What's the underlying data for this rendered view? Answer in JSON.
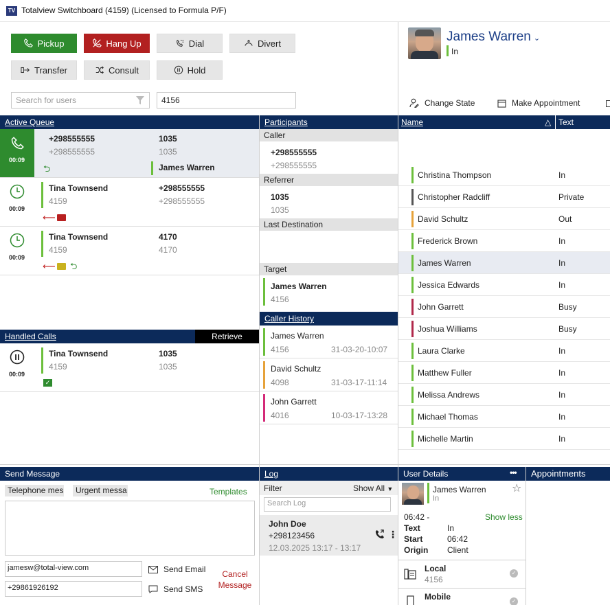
{
  "app": {
    "title": "Totalview Switchboard (4159) (Licensed to Formula P/F)",
    "logo": "TV"
  },
  "toolbar": {
    "pickup": "Pickup",
    "hangup": "Hang Up",
    "dial": "Dial",
    "divert": "Divert",
    "transfer": "Transfer",
    "consult": "Consult",
    "hold": "Hold"
  },
  "search": {
    "placeholder": "Search for users",
    "number": "4156"
  },
  "profile": {
    "name": "James Warren",
    "state": "In",
    "change_state": "Change State",
    "make_appointment": "Make Appointment"
  },
  "active_queue": {
    "title": "Active Queue",
    "calls": [
      {
        "time": "00:09",
        "from_name": "+298555555",
        "from_num": "+298555555",
        "to_name": "1035",
        "to_num": "1035",
        "agent": "James Warren"
      },
      {
        "time": "00:09",
        "from_name": "Tina Townsend",
        "from_num": "4159",
        "to_name": "+298555555",
        "to_num": "+298555555"
      },
      {
        "time": "00:09",
        "from_name": "Tina Townsend",
        "from_num": "4159",
        "to_name": "4170",
        "to_num": "4170"
      }
    ]
  },
  "handled": {
    "title": "Handled Calls",
    "retrieve": "Retrieve",
    "call": {
      "time": "00:09",
      "from_name": "Tina Townsend",
      "from_num": "4159",
      "to_name": "1035",
      "to_num": "1035"
    }
  },
  "participants": {
    "title": "Participants",
    "caller_label": "Caller",
    "caller_name": "+298555555",
    "caller_num": "+298555555",
    "referrer_label": "Referrer",
    "referrer_name": "1035",
    "referrer_num": "1035",
    "last_dest_label": "Last Destination",
    "target_label": "Target",
    "target_name": "James Warren",
    "target_num": "4156"
  },
  "caller_history": {
    "title": "Caller History",
    "items": [
      {
        "name": "James Warren",
        "num": "4156",
        "date": "31-03-20-10:07",
        "color": "#6cbf3c"
      },
      {
        "name": "David Schultz",
        "num": "4098",
        "date": "31-03-17-11:14",
        "color": "#e6a23a"
      },
      {
        "name": "John Garrett",
        "num": "4016",
        "date": "10-03-17-13:28",
        "color": "#d42a78"
      }
    ]
  },
  "directory": {
    "col_name": "Name",
    "col_text": "Text",
    "sort_icon": "△",
    "rows": [
      {
        "name": "Christina Thompson",
        "text": "In",
        "color": "#6cbf3c"
      },
      {
        "name": "Christopher Radcliff",
        "text": "Private",
        "color": "#555555"
      },
      {
        "name": "David Schultz",
        "text": "Out",
        "color": "#e6a23a"
      },
      {
        "name": "Frederick Brown",
        "text": "In",
        "color": "#6cbf3c"
      },
      {
        "name": "James Warren",
        "text": "In",
        "color": "#6cbf3c"
      },
      {
        "name": "Jessica Edwards",
        "text": "In",
        "color": "#6cbf3c"
      },
      {
        "name": "John Garrett",
        "text": "Busy",
        "color": "#b0284a"
      },
      {
        "name": "Joshua Williams",
        "text": "Busy",
        "color": "#b0284a"
      },
      {
        "name": "Laura Clarke",
        "text": "In",
        "color": "#6cbf3c"
      },
      {
        "name": "Matthew Fuller",
        "text": "In",
        "color": "#6cbf3c"
      },
      {
        "name": "Melissa Andrews",
        "text": "In",
        "color": "#6cbf3c"
      },
      {
        "name": "Michael Thomas",
        "text": "In",
        "color": "#6cbf3c"
      },
      {
        "name": "Michelle Martin",
        "text": "In",
        "color": "#6cbf3c"
      }
    ]
  },
  "send_message": {
    "title": "Send Message",
    "tab1": "Telephone mes",
    "tab2": "Urgent messa",
    "templates": "Templates",
    "email": "jamesw@total-view.com",
    "sms": "+29861926192",
    "send_email": "Send Email",
    "send_sms": "Send SMS",
    "cancel": "Cancel Message"
  },
  "log": {
    "title": "Log",
    "filter": "Filter",
    "show_all": "Show All",
    "search_placeholder": "Search Log",
    "entry": {
      "name": "John Doe",
      "num": "+298123456",
      "time": "12.03.2025 13:17 - 13:17"
    }
  },
  "user_details": {
    "title": "User Details",
    "more": "•••",
    "name": "James Warren",
    "state": "In",
    "range": "06:42 -",
    "show_less": "Show less",
    "text_label": "Text",
    "text_value": "In",
    "start_label": "Start",
    "start_value": "06:42",
    "origin_label": "Origin",
    "origin_value": "Client",
    "local_label": "Local",
    "local_value": "4156",
    "mobile_label": "Mobile"
  },
  "appointments": {
    "title": "Appointments"
  }
}
